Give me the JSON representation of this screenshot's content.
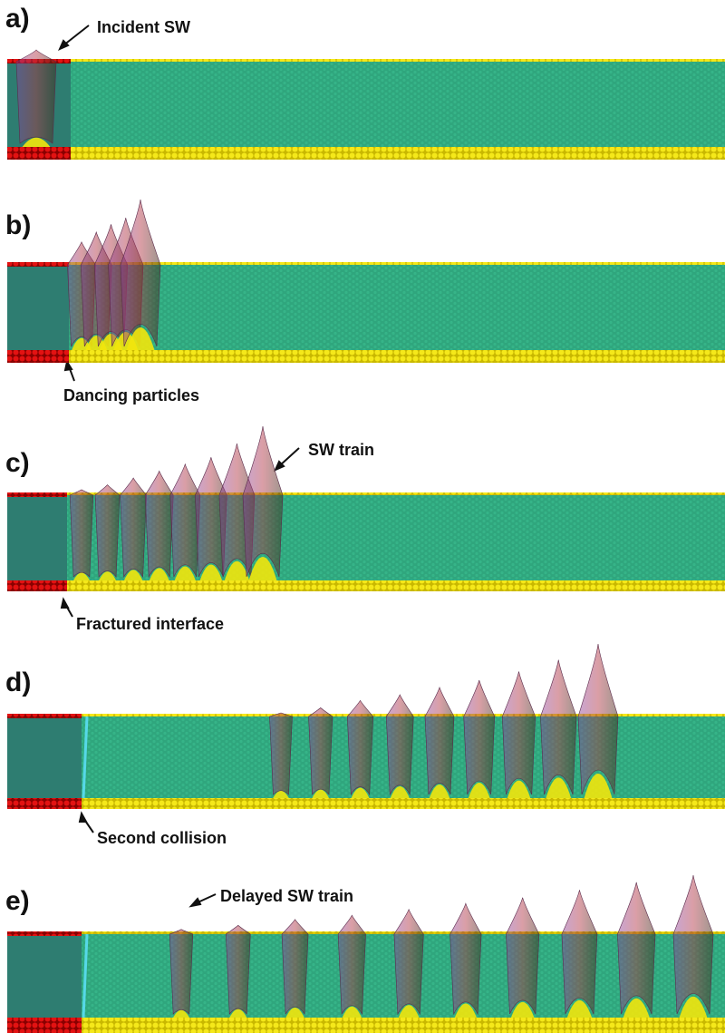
{
  "panels": [
    {
      "label": "a)",
      "annotation": "Incident SW"
    },
    {
      "label": "b)",
      "annotation": "Dancing particles"
    },
    {
      "label": "c)",
      "annotation": "SW train",
      "note2": "Fractured interface"
    },
    {
      "label": "d)",
      "annotation": "Second collision"
    },
    {
      "label": "e)",
      "annotation": "Delayed SW train"
    }
  ],
  "colors": {
    "surface": "#2fa67d",
    "surface_dark": "#1d7a5b",
    "left_block": "#2e7d71",
    "particles_yellow": "#f2e60c",
    "particles_red": "#e01010",
    "wave_purple": "#7a3a8c",
    "wave_red": "#c23030",
    "wave_dark": "#3a2a1a",
    "interface_cyan": "#56d8e8"
  },
  "wave_heights": {
    "a": [
      1.0
    ],
    "b": [
      0.35,
      0.5,
      0.62,
      0.72,
      1.0
    ],
    "c": [
      0.08,
      0.15,
      0.25,
      0.35,
      0.45,
      0.55,
      0.75,
      1.0
    ],
    "d": [
      0.05,
      0.12,
      0.22,
      0.3,
      0.4,
      0.5,
      0.62,
      0.78,
      1.0
    ],
    "e": [
      0.08,
      0.15,
      0.25,
      0.32,
      0.42,
      0.52,
      0.62,
      0.75,
      0.88,
      1.0
    ]
  }
}
